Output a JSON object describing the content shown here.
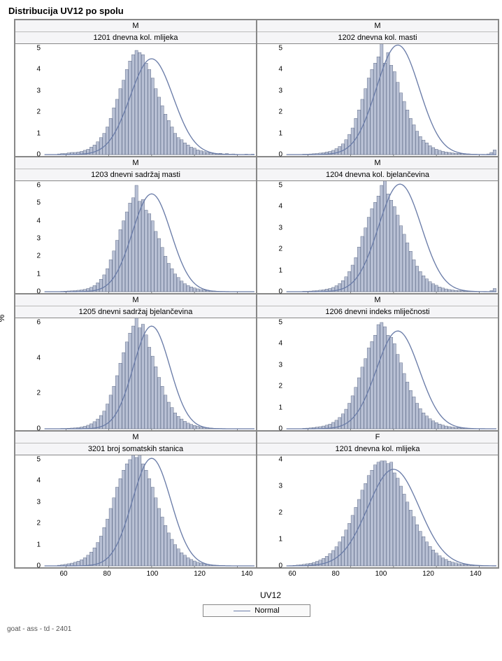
{
  "title": "Distribucija UV12 po spolu",
  "footer": "goat - ass - td - 2401",
  "x_label": "UV12",
  "y_label": "%",
  "legend_label": "Normal",
  "layout": {
    "rows": 4,
    "cols": 2
  },
  "style": {
    "bar_fill": "#b8c0d4",
    "bar_stroke": "#4a5878",
    "curve_color": "#6a7ca8",
    "curve_width": 1.3,
    "grid_border": "#888888",
    "header_bg": "#f5f5f7",
    "title_fontsize": 13,
    "header_fontsize": 11,
    "tick_fontsize": 10,
    "axis_fontsize": 12
  },
  "x_domain": [
    50,
    148
  ],
  "x_ticks": [
    60,
    80,
    100,
    120,
    140
  ],
  "panels": [
    {
      "sex": "M",
      "sub": "1201 dnevna kol. mlijeka",
      "y_ticks": [
        0,
        1,
        2,
        3,
        4,
        5
      ],
      "mean": 100,
      "sd": 10,
      "bars": [
        0,
        0,
        0,
        0,
        0.03,
        0.05,
        0.05,
        0.08,
        0.1,
        0.1,
        0.12,
        0.15,
        0.2,
        0.25,
        0.35,
        0.45,
        0.6,
        0.8,
        1.0,
        1.3,
        1.7,
        2.2,
        2.6,
        3.1,
        3.5,
        4.0,
        4.4,
        4.7,
        4.9,
        4.8,
        4.7,
        4.3,
        4.0,
        3.6,
        3.1,
        2.7,
        2.3,
        1.9,
        1.6,
        1.3,
        1.0,
        0.8,
        0.7,
        0.55,
        0.45,
        0.35,
        0.3,
        0.22,
        0.18,
        0.14,
        0.1,
        0.08,
        0.05,
        0.03,
        0.06,
        0.03,
        0.05,
        0.02,
        0.03,
        0.01,
        0,
        0,
        0.02,
        0,
        0.02
      ]
    },
    {
      "sex": "M",
      "sub": "1202 dnevna kol. masti",
      "y_ticks": [
        0,
        1,
        2,
        3,
        4,
        5
      ],
      "mean": 102,
      "sd": 10,
      "bars": [
        0,
        0,
        0,
        0,
        0,
        0.02,
        0.02,
        0.03,
        0.04,
        0.05,
        0.07,
        0.09,
        0.12,
        0.15,
        0.2,
        0.28,
        0.38,
        0.5,
        0.7,
        0.95,
        1.25,
        1.7,
        2.1,
        2.6,
        3.1,
        3.6,
        4.0,
        4.3,
        4.6,
        5.6,
        4.3,
        4.8,
        4.2,
        3.9,
        3.4,
        2.9,
        2.5,
        2.1,
        1.7,
        1.4,
        1.1,
        0.85,
        0.68,
        0.55,
        0.42,
        0.33,
        0.25,
        0.2,
        0.15,
        0.12,
        0.1,
        0.08,
        0.06,
        0.05,
        0.04,
        0.03,
        0.03,
        0.02,
        0.02,
        0.01,
        0,
        0,
        0.03,
        0.1,
        0.22
      ]
    },
    {
      "sex": "M",
      "sub": "1203 dnevni sadržaj masti",
      "y_ticks": [
        0,
        1,
        2,
        3,
        4,
        5,
        6
      ],
      "mean": 100,
      "sd": 9,
      "bars": [
        0,
        0,
        0,
        0,
        0,
        0.02,
        0.03,
        0.04,
        0.05,
        0.06,
        0.08,
        0.1,
        0.13,
        0.18,
        0.25,
        0.35,
        0.5,
        0.7,
        0.95,
        1.3,
        1.8,
        2.3,
        2.9,
        3.5,
        4.0,
        4.5,
        5.0,
        5.3,
        6.0,
        5.1,
        5.2,
        4.6,
        4.4,
        4.0,
        3.4,
        3.0,
        2.5,
        2.0,
        1.6,
        1.3,
        1.0,
        0.8,
        0.6,
        0.45,
        0.35,
        0.27,
        0.21,
        0.16,
        0.12,
        0.09,
        0.07,
        0.05,
        0.04,
        0.03,
        0.02,
        0.02,
        0.01,
        0.01,
        0,
        0,
        0,
        0,
        0,
        0,
        0
      ]
    },
    {
      "sex": "M",
      "sub": "1204 dnevna kol. bjelančevina",
      "y_ticks": [
        0,
        1,
        2,
        3,
        4,
        5
      ],
      "mean": 103,
      "sd": 10,
      "bars": [
        0,
        0,
        0,
        0,
        0,
        0.02,
        0.02,
        0.03,
        0.04,
        0.05,
        0.07,
        0.09,
        0.12,
        0.15,
        0.2,
        0.28,
        0.38,
        0.52,
        0.7,
        0.95,
        1.25,
        1.6,
        2.1,
        2.6,
        3.0,
        3.5,
        3.9,
        4.2,
        4.5,
        5.0,
        5.5,
        4.6,
        4.3,
        4.0,
        3.6,
        3.1,
        2.7,
        2.3,
        1.9,
        1.5,
        1.2,
        0.95,
        0.75,
        0.6,
        0.47,
        0.37,
        0.3,
        0.22,
        0.17,
        0.13,
        0.1,
        0.08,
        0.06,
        0.05,
        0.04,
        0.03,
        0.02,
        0.02,
        0.02,
        0.01,
        0.01,
        0,
        0,
        0.05,
        0.15
      ]
    },
    {
      "sex": "M",
      "sub": "1205 dnevni sadržaj bjelančevina",
      "y_ticks": [
        0,
        2,
        4,
        6
      ],
      "mean": 100,
      "sd": 8.5,
      "bars": [
        0,
        0,
        0,
        0,
        0,
        0.02,
        0.02,
        0.03,
        0.04,
        0.05,
        0.07,
        0.1,
        0.14,
        0.2,
        0.28,
        0.4,
        0.55,
        0.75,
        1.0,
        1.4,
        1.9,
        2.4,
        3.0,
        3.7,
        4.3,
        4.9,
        5.4,
        5.8,
        6.3,
        5.7,
        5.9,
        5.3,
        4.6,
        4.1,
        3.5,
        2.9,
        2.4,
        1.9,
        1.5,
        1.2,
        0.9,
        0.7,
        0.55,
        0.42,
        0.32,
        0.25,
        0.19,
        0.14,
        0.1,
        0.08,
        0.06,
        0.04,
        0.03,
        0.02,
        0.02,
        0.01,
        0.01,
        0,
        0,
        0,
        0,
        0,
        0,
        0,
        0
      ]
    },
    {
      "sex": "M",
      "sub": "1206 dnevni indeks mliječnosti",
      "y_ticks": [
        0,
        1,
        2,
        3,
        4,
        5
      ],
      "mean": 102,
      "sd": 10,
      "bars": [
        0,
        0,
        0,
        0,
        0,
        0.02,
        0.03,
        0.04,
        0.06,
        0.08,
        0.1,
        0.13,
        0.17,
        0.22,
        0.3,
        0.4,
        0.53,
        0.7,
        0.92,
        1.2,
        1.55,
        1.95,
        2.4,
        2.9,
        3.3,
        3.8,
        4.1,
        4.4,
        4.9,
        5.0,
        4.8,
        4.4,
        4.3,
        4.0,
        3.5,
        3.1,
        2.6,
        2.2,
        1.8,
        1.5,
        1.2,
        0.95,
        0.75,
        0.6,
        0.47,
        0.37,
        0.29,
        0.22,
        0.17,
        0.13,
        0.1,
        0.08,
        0.06,
        0.05,
        0.03,
        0.03,
        0.02,
        0.02,
        0.01,
        0.01,
        0,
        0,
        0,
        0,
        0
      ]
    },
    {
      "sex": "M",
      "sub": "3201 broj somatskih stanica",
      "y_ticks": [
        0,
        1,
        2,
        3,
        4,
        5
      ],
      "mean": 100,
      "sd": 9,
      "bars": [
        0,
        0,
        0,
        0,
        0.03,
        0.05,
        0.07,
        0.1,
        0.13,
        0.17,
        0.22,
        0.29,
        0.38,
        0.5,
        0.65,
        0.85,
        1.1,
        1.4,
        1.8,
        2.2,
        2.7,
        3.2,
        3.7,
        4.1,
        4.5,
        4.8,
        5.0,
        5.3,
        5.1,
        5.5,
        4.8,
        4.5,
        4.1,
        3.7,
        3.2,
        2.7,
        2.3,
        1.9,
        1.55,
        1.25,
        1.0,
        0.8,
        0.62,
        0.5,
        0.38,
        0.3,
        0.23,
        0.17,
        0.13,
        0.1,
        0.07,
        0.05,
        0.04,
        0.03,
        0.02,
        0.02,
        0.01,
        0.01,
        0,
        0,
        0,
        0,
        0,
        0,
        0
      ]
    },
    {
      "sex": "F",
      "sub": "1201 dnevna kol. mlijeka",
      "y_ticks": [
        0,
        1,
        2,
        3,
        4
      ],
      "mean": 100,
      "sd": 12,
      "bars": [
        0,
        0,
        0.02,
        0.03,
        0.04,
        0.06,
        0.08,
        0.1,
        0.13,
        0.17,
        0.22,
        0.28,
        0.36,
        0.46,
        0.58,
        0.72,
        0.9,
        1.1,
        1.35,
        1.6,
        1.9,
        2.2,
        2.5,
        2.85,
        3.1,
        3.4,
        3.6,
        3.8,
        3.9,
        3.95,
        3.95,
        3.85,
        3.9,
        3.5,
        3.3,
        3.0,
        2.7,
        2.4,
        2.1,
        1.85,
        1.55,
        1.3,
        1.1,
        0.9,
        0.73,
        0.6,
        0.48,
        0.38,
        0.3,
        0.24,
        0.18,
        0.14,
        0.11,
        0.08,
        0.06,
        0.05,
        0.04,
        0.03,
        0.02,
        0.02,
        0.01,
        0.01,
        0.01,
        0,
        0
      ]
    }
  ]
}
